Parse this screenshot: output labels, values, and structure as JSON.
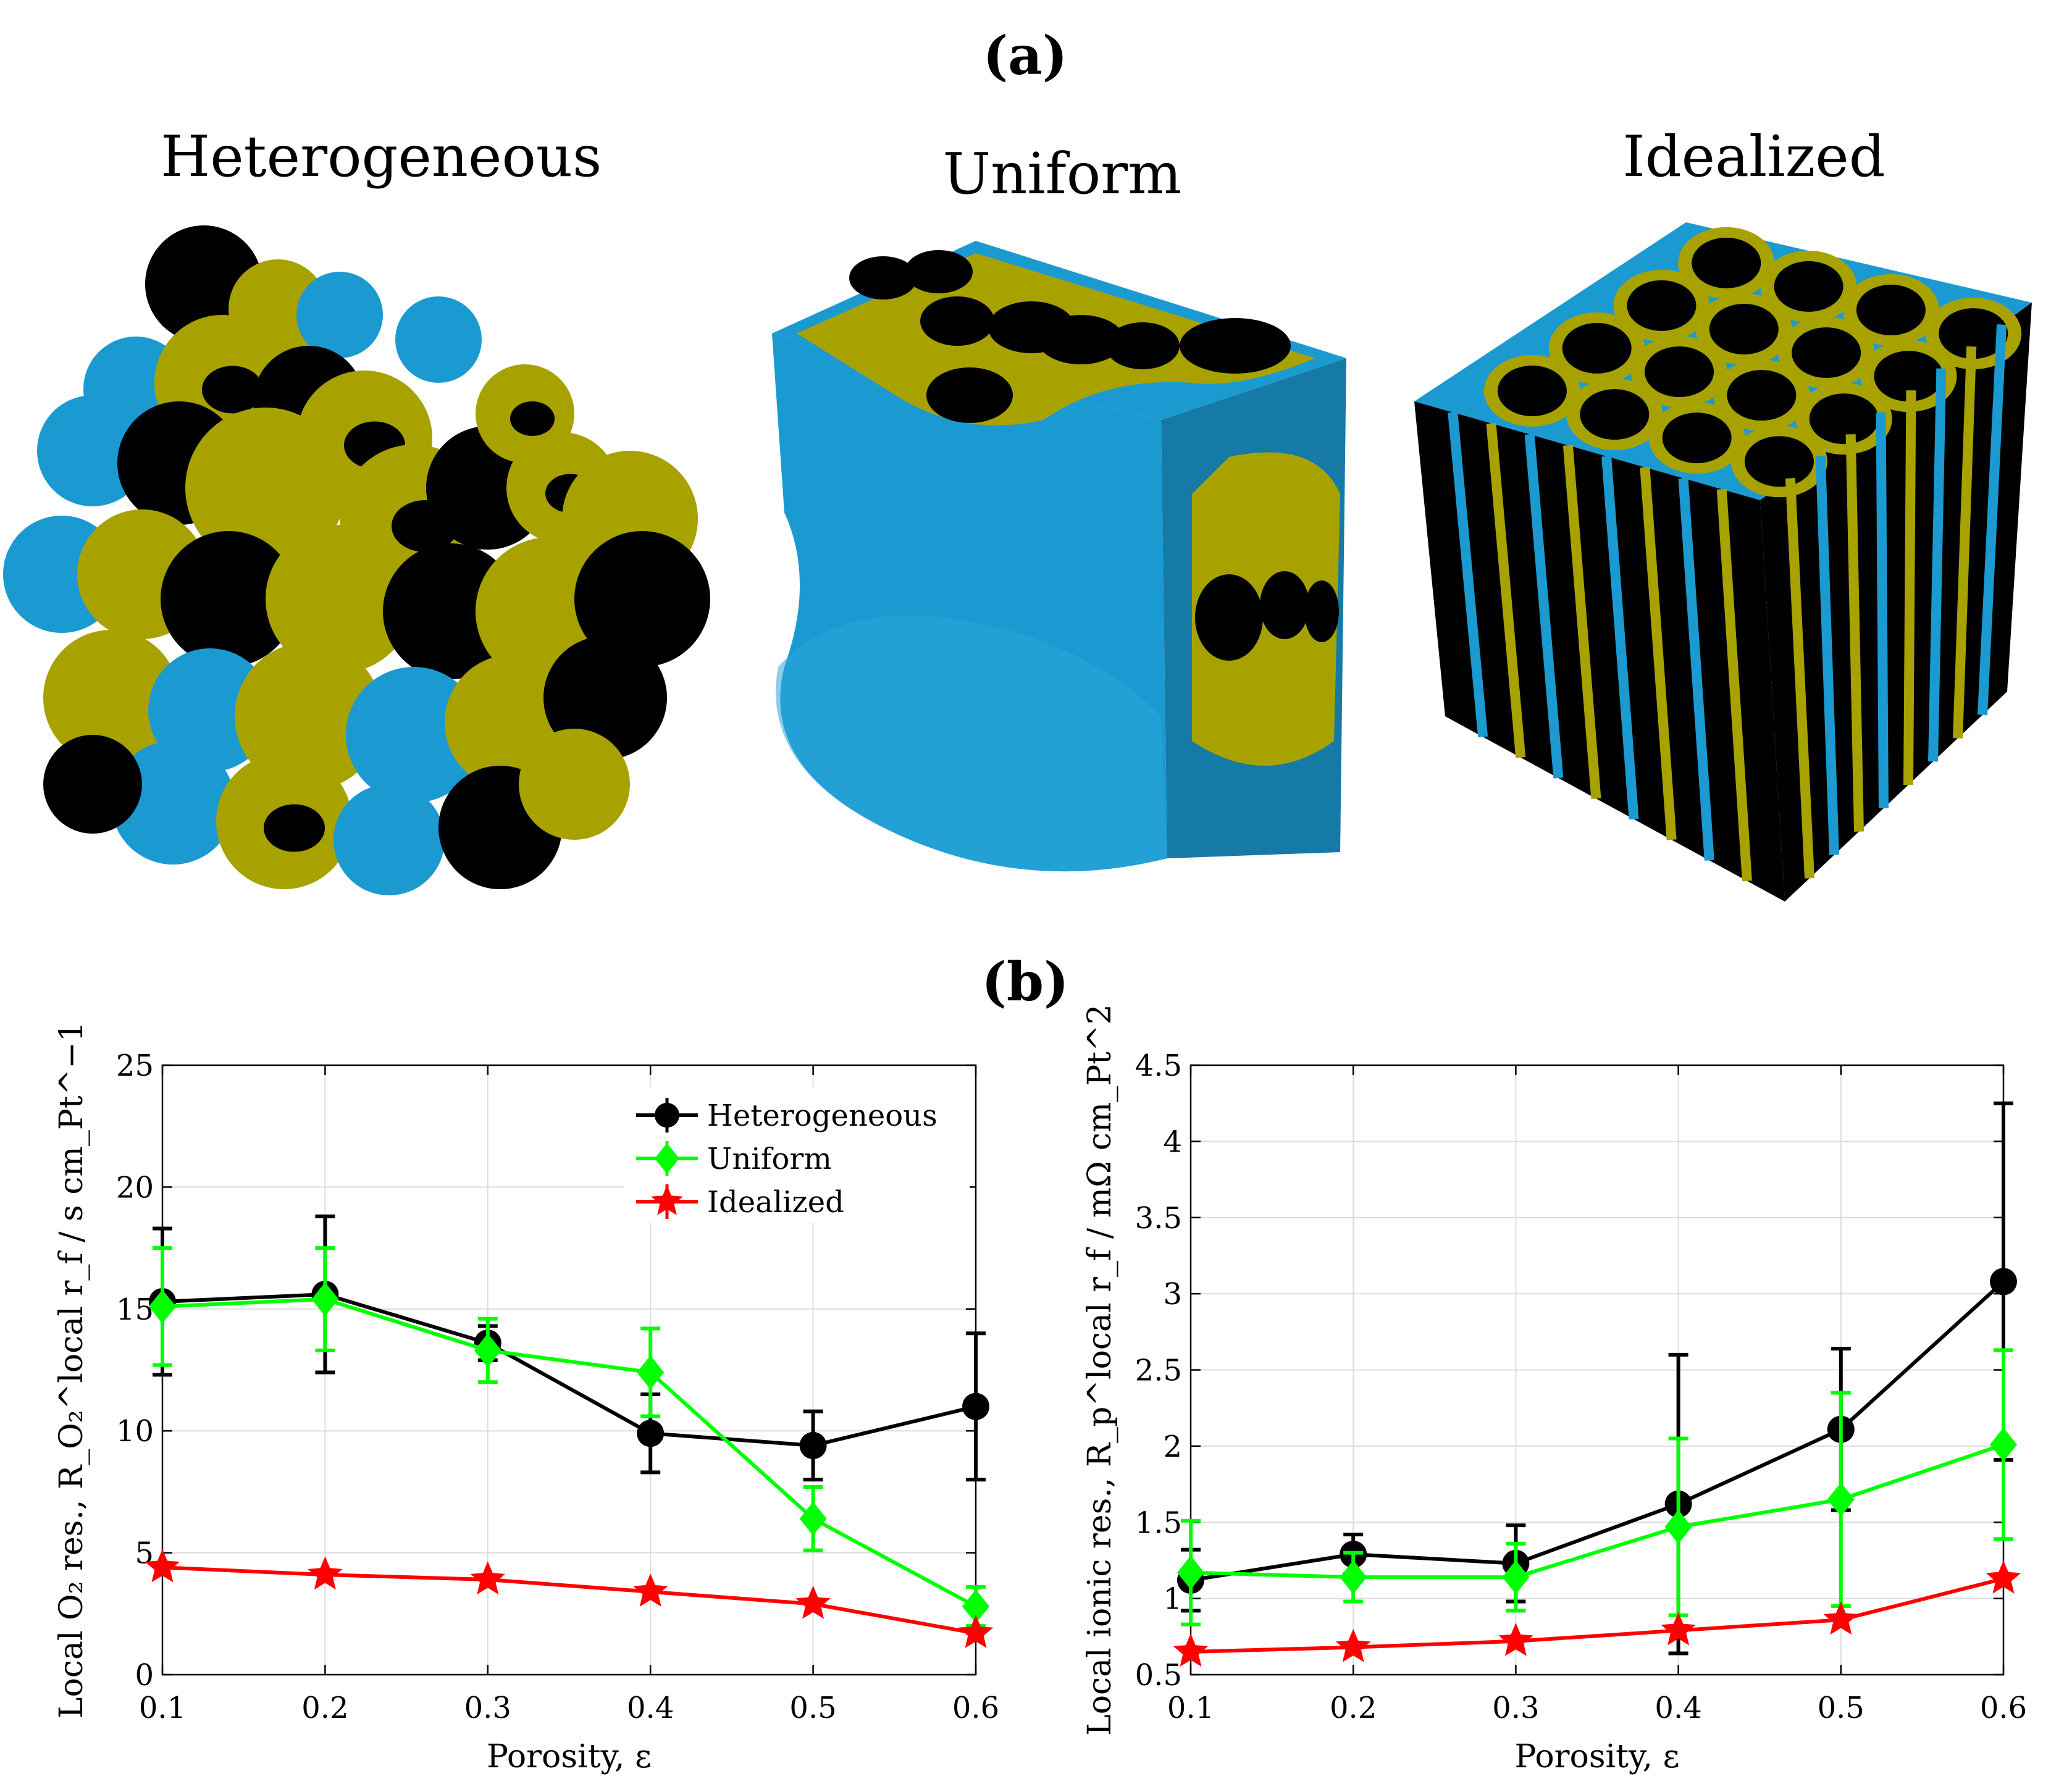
{
  "panels": {
    "a": "(a)",
    "b": "(b)"
  },
  "structures": [
    {
      "title": "Heterogeneous"
    },
    {
      "title": "Uniform"
    },
    {
      "title": "Idealized"
    }
  ],
  "colors": {
    "solid": "#000000",
    "ionomer": "#a8a200",
    "pore": "#1b9ad1"
  },
  "chart_data": [
    {
      "type": "line",
      "x": [
        0.1,
        0.2,
        0.3,
        0.4,
        0.5,
        0.6
      ],
      "xlabel": "Porosity, ε",
      "ylabel": "Local O₂ res., R_O₂^local r_f / s cm_Pt^−1",
      "xlim": [
        0.1,
        0.6
      ],
      "ylim": [
        0,
        25
      ],
      "xticks": [
        "0.1",
        "0.2",
        "0.3",
        "0.4",
        "0.5",
        "0.6"
      ],
      "yticks": [
        "0",
        "5",
        "10",
        "15",
        "20",
        "25"
      ],
      "grid": true,
      "legend": "top-right",
      "series": [
        {
          "name": "Heterogeneous",
          "color": "#000000",
          "marker": "circle",
          "values": [
            15.3,
            15.6,
            13.6,
            9.9,
            9.4,
            11.0
          ],
          "err": [
            3.0,
            3.2,
            0.7,
            1.6,
            1.4,
            3.0
          ]
        },
        {
          "name": "Uniform",
          "color": "#00ff00",
          "marker": "diamond",
          "values": [
            15.1,
            15.4,
            13.3,
            12.4,
            6.4,
            2.8
          ],
          "err": [
            2.4,
            2.1,
            1.3,
            1.8,
            1.3,
            0.8
          ]
        },
        {
          "name": "Idealized",
          "color": "#ff0000",
          "marker": "star",
          "values": [
            4.4,
            4.1,
            3.9,
            3.4,
            2.9,
            1.7
          ],
          "err": [
            0.0,
            0.0,
            0.0,
            0.0,
            0.0,
            0.0
          ]
        }
      ]
    },
    {
      "type": "line",
      "x": [
        0.1,
        0.2,
        0.3,
        0.4,
        0.5,
        0.6
      ],
      "xlabel": "Porosity, ε",
      "ylabel": "Local ionic res., R_p^local r_f / mΩ cm_Pt^2",
      "xlim": [
        0.1,
        0.6
      ],
      "ylim": [
        0.5,
        4.5
      ],
      "xticks": [
        "0.1",
        "0.2",
        "0.3",
        "0.4",
        "0.5",
        "0.6"
      ],
      "yticks": [
        "0.5",
        "1",
        "1.5",
        "2",
        "2.5",
        "3",
        "3.5",
        "4",
        "4.5"
      ],
      "grid": true,
      "legend": "none",
      "series": [
        {
          "name": "Heterogeneous",
          "color": "#000000",
          "marker": "circle",
          "values": [
            1.12,
            1.29,
            1.23,
            1.62,
            2.11,
            3.08
          ],
          "err": [
            0.2,
            0.13,
            0.25,
            0.98,
            0.53,
            1.17
          ]
        },
        {
          "name": "Uniform",
          "color": "#00ff00",
          "marker": "diamond",
          "values": [
            1.17,
            1.14,
            1.14,
            1.47,
            1.65,
            2.01
          ],
          "err": [
            0.34,
            0.16,
            0.22,
            0.58,
            0.7,
            0.62
          ]
        },
        {
          "name": "Idealized",
          "color": "#ff0000",
          "marker": "star",
          "values": [
            0.65,
            0.68,
            0.72,
            0.79,
            0.86,
            1.13
          ],
          "err": [
            0,
            0,
            0,
            0,
            0,
            0
          ]
        }
      ]
    }
  ]
}
